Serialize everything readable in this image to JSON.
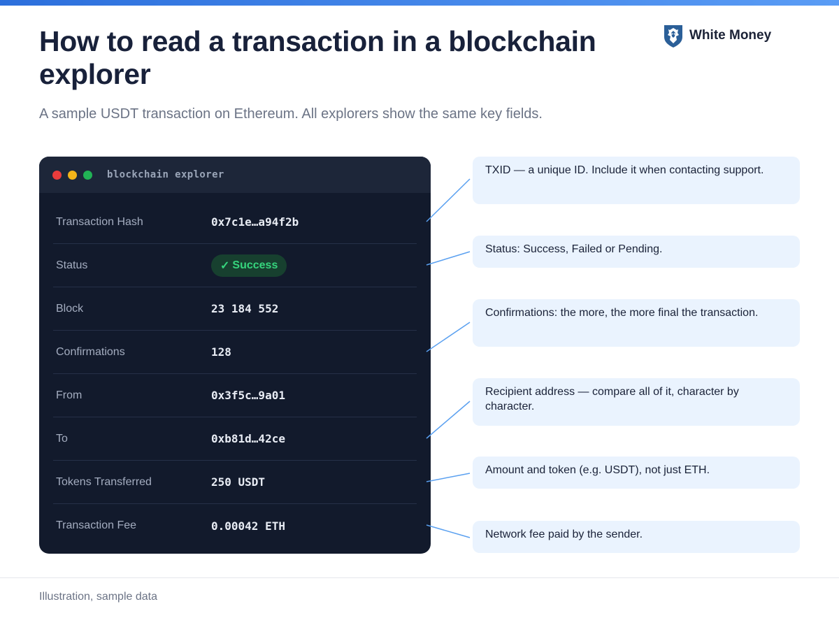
{
  "title": "How to read a transaction in a blockchain explorer",
  "subtitle": "A sample USDT transaction on Ethereum. All explorers show the same key fields.",
  "brand": {
    "name": "White Money",
    "icon": "lion-shield-icon",
    "color": "#2b5f98"
  },
  "explorer": {
    "window_title": "blockchain explorer",
    "rows": [
      {
        "label": "Transaction Hash",
        "value": "0x7c1e…a94f2b"
      },
      {
        "label": "Status",
        "value": "Success",
        "status_glyph": "✓"
      },
      {
        "label": "Block",
        "value": "23 184 552"
      },
      {
        "label": "Confirmations",
        "value": "128"
      },
      {
        "label": "From",
        "value": "0x3f5c…9a01"
      },
      {
        "label": "To",
        "value": "0xb81d…42ce"
      },
      {
        "label": "Tokens Transferred",
        "value": "250 USDT"
      },
      {
        "label": "Transaction Fee",
        "value": "0.00042 ETH"
      }
    ]
  },
  "callouts": [
    {
      "text": "TXID — a unique ID. Include it when contacting support."
    },
    {
      "text": "Status: Success, Failed or Pending."
    },
    {
      "text": "Confirmations: the more, the more final the transaction."
    },
    {
      "text": "Recipient address — compare all of it, character by character."
    },
    {
      "text": "Amount and token (e.g. USDT), not just ETH."
    },
    {
      "text": "Network fee paid by the sender."
    }
  ],
  "footer": "Illustration, sample data",
  "colors": {
    "accent": "#2c6fdc",
    "connector": "#5aa0f0",
    "panel_bg": "#121a2c",
    "panel_header": "#1d2639",
    "success": "#36d57d",
    "callout_bg": "#eaf3fe"
  }
}
